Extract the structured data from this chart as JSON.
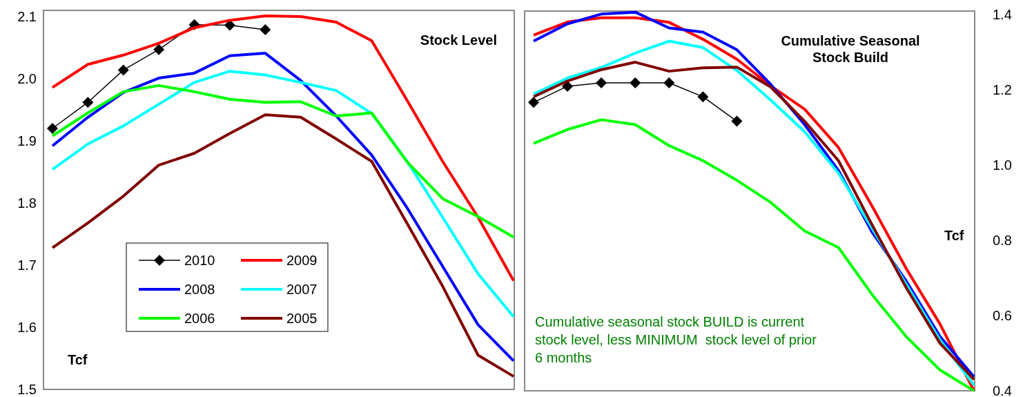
{
  "chart_data": [
    {
      "type": "line",
      "title": "Stock Level",
      "categories": [
        null,
        null,
        null,
        null,
        null,
        null,
        null,
        null,
        null,
        null,
        null,
        null,
        null,
        null
      ],
      "ylim": [
        1.5,
        2.11
      ],
      "yticks": [
        1.5,
        {
          "value": 1.6,
          "label": "1.6"
        },
        {
          "value": 1.7,
          "label": "1.7"
        },
        {
          "value": 1.8,
          "label": "1.8"
        },
        {
          "value": 1.9,
          "label": "1.9"
        },
        {
          "value": 2.0,
          "label": "2.0"
        },
        {
          "value": 2.1,
          "label": "2.1"
        }
      ],
      "legend": "bottom left",
      "grid": false,
      "annotations": [
        "Tcf"
      ],
      "series": [
        {
          "name": "2010",
          "color": "#000000",
          "marker": "diamond",
          "values": [
            1.92,
            1.962,
            2.014,
            2.047,
            2.087,
            2.086,
            2.079,
            null,
            null,
            null,
            null,
            null,
            null,
            null
          ]
        },
        {
          "name": "2009",
          "color": "#ff0000",
          "values": [
            1.986,
            2.023,
            2.038,
            2.057,
            2.082,
            2.094,
            2.101,
            2.1,
            2.091,
            2.061,
            1.965,
            1.867,
            1.777,
            1.675
          ]
        },
        {
          "name": "2008",
          "color": "#0000ff",
          "values": [
            1.892,
            1.938,
            1.978,
            2.001,
            2.009,
            2.037,
            2.041,
            1.997,
            1.94,
            1.877,
            1.792,
            1.698,
            1.604,
            1.546
          ]
        },
        {
          "name": "2007",
          "color": "#00ffff",
          "values": [
            1.854,
            1.895,
            1.924,
            1.959,
            1.994,
            2.012,
            2.006,
            1.994,
            1.981,
            1.944,
            1.867,
            1.777,
            1.686,
            1.617
          ]
        },
        {
          "name": "2006",
          "color": "#00ff00",
          "values": [
            1.908,
            1.945,
            1.979,
            1.989,
            1.979,
            1.967,
            1.962,
            1.963,
            1.94,
            1.945,
            1.866,
            1.807,
            1.778,
            1.745
          ]
        },
        {
          "name": "2005",
          "color": "#800000",
          "values": [
            1.728,
            1.768,
            1.811,
            1.861,
            1.88,
            1.912,
            1.942,
            1.938,
            1.903,
            1.867,
            1.767,
            1.666,
            1.555,
            1.521
          ]
        }
      ]
    },
    {
      "type": "line",
      "title": "Cumulative Seasonal Stock Build",
      "categories": [
        null,
        null,
        null,
        null,
        null,
        null,
        null,
        null,
        null,
        null,
        null,
        null,
        null,
        null
      ],
      "ylim": [
        0.4,
        1.41
      ],
      "yticks": [
        {
          "value": 0.4,
          "label": "0.4"
        },
        {
          "value": 0.6,
          "label": "0.6"
        },
        {
          "value": 0.8,
          "label": "0.8"
        },
        {
          "value": 1.0,
          "label": "1.0"
        },
        {
          "value": 1.2,
          "label": "1.2"
        },
        {
          "value": 1.4,
          "label": "1.4"
        }
      ],
      "legend": false,
      "grid": false,
      "annotations": [
        "Tcf",
        "Cumulative seasonal stock BUILD is current stock level, less MINIMUM  stock level of prior 6 months"
      ],
      "series": [
        {
          "color": "#000000",
          "marker": "diamond",
          "values": [
            1.167,
            1.21,
            1.219,
            1.219,
            1.219,
            1.182,
            1.117,
            null,
            null,
            null,
            null,
            null,
            null,
            null
          ]
        },
        {
          "color": "#ff0000",
          "values": [
            1.346,
            1.381,
            1.392,
            1.392,
            1.38,
            1.335,
            1.282,
            1.211,
            1.149,
            1.047,
            0.89,
            0.725,
            0.577,
            0.4
          ]
        },
        {
          "color": "#0000ff",
          "values": [
            1.33,
            1.376,
            1.402,
            1.407,
            1.365,
            1.354,
            1.307,
            1.215,
            1.108,
            0.986,
            0.821,
            0.692,
            0.544,
            0.437
          ]
        },
        {
          "color": "#00ffff",
          "values": [
            1.189,
            1.232,
            1.26,
            1.298,
            1.33,
            1.313,
            1.252,
            1.173,
            1.089,
            0.979,
            0.831,
            0.683,
            0.535,
            0.415
          ]
        },
        {
          "color": "#00ff00",
          "values": [
            1.058,
            1.095,
            1.121,
            1.108,
            1.052,
            1.012,
            0.96,
            0.901,
            0.825,
            0.781,
            0.655,
            0.544,
            0.455,
            0.4
          ]
        },
        {
          "color": "#800000",
          "values": [
            1.182,
            1.224,
            1.254,
            1.274,
            1.25,
            1.259,
            1.261,
            1.208,
            1.117,
            1.012,
            0.84,
            0.674,
            0.526,
            0.43
          ]
        }
      ]
    }
  ]
}
